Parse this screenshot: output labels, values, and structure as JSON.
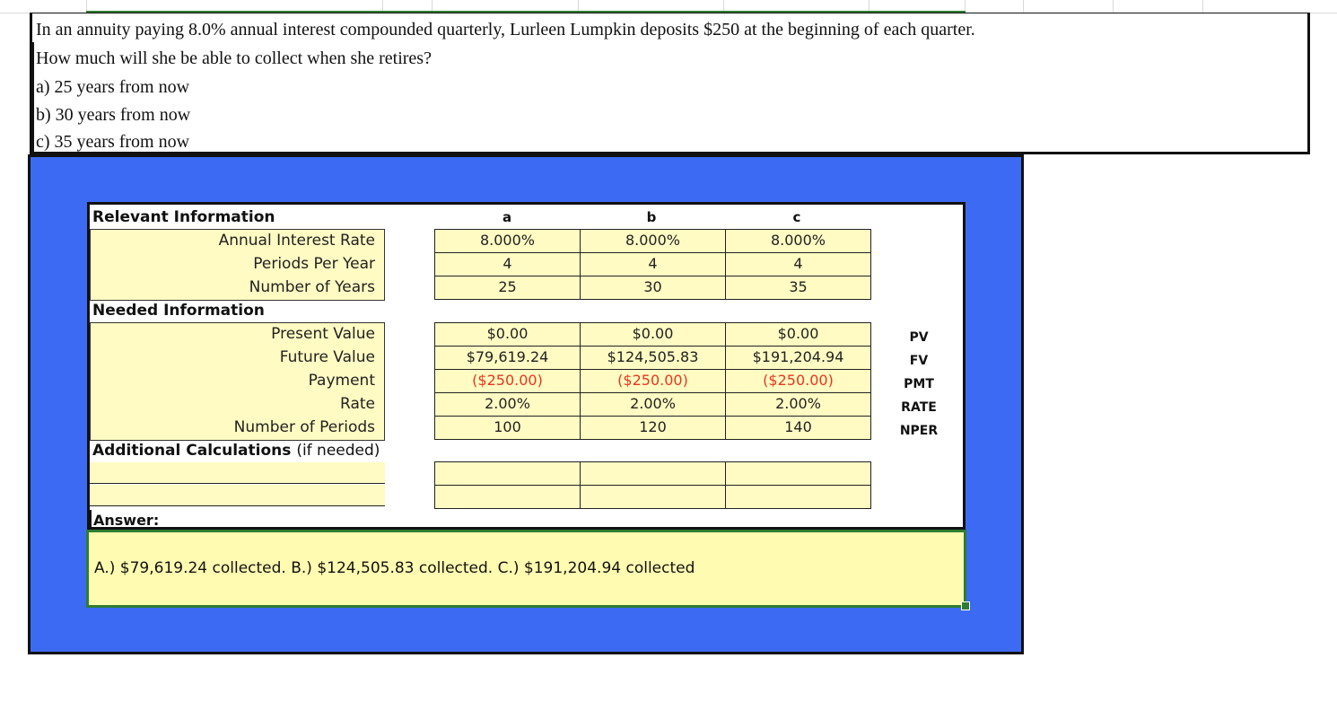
{
  "question": {
    "lines": [
      "In an annuity paying 8.0% annual interest compounded quarterly, Lurleen Lumpkin deposits $250 at the beginning of each quarter.",
      "How much will she be able to collect when she retires?",
      "a) 25 years from now",
      "b) 30 years from now",
      "c) 35 years from now"
    ]
  },
  "sheet": {
    "relevant_header": "Relevant Information",
    "needed_header": "Needed Information",
    "additional_header": "Additional Calculations",
    "additional_suffix": "(if needed)",
    "answer_header": "Answer:",
    "columns": [
      "a",
      "b",
      "c"
    ],
    "relevant_labels": [
      "Annual Interest Rate",
      "Periods Per Year",
      "Number of Years"
    ],
    "relevant_values": [
      [
        "8.000%",
        "8.000%",
        "8.000%"
      ],
      [
        "4",
        "4",
        "4"
      ],
      [
        "25",
        "30",
        "35"
      ]
    ],
    "needed_labels": [
      "Present Value",
      "Future Value",
      "Payment",
      "Rate",
      "Number of Periods"
    ],
    "needed_values": [
      [
        "$0.00",
        "$0.00",
        "$0.00"
      ],
      [
        "$79,619.24",
        "$124,505.83",
        "$191,204.94"
      ],
      [
        "($250.00)",
        "($250.00)",
        "($250.00)"
      ],
      [
        "2.00%",
        "2.00%",
        "2.00%"
      ],
      [
        "100",
        "120",
        "140"
      ]
    ],
    "function_names": [
      "PV",
      "FV",
      "PMT",
      "RATE",
      "NPER"
    ],
    "answer": "A.) $79,619.24 collected. B.) $124,505.83 collected. C.) $191,204.94 collected"
  },
  "colors": {
    "background_blue": "#3d6af2",
    "cell_yellow": "#fffbc3",
    "negative_red": "#e8361e",
    "selection_green": "#2e7d32"
  }
}
